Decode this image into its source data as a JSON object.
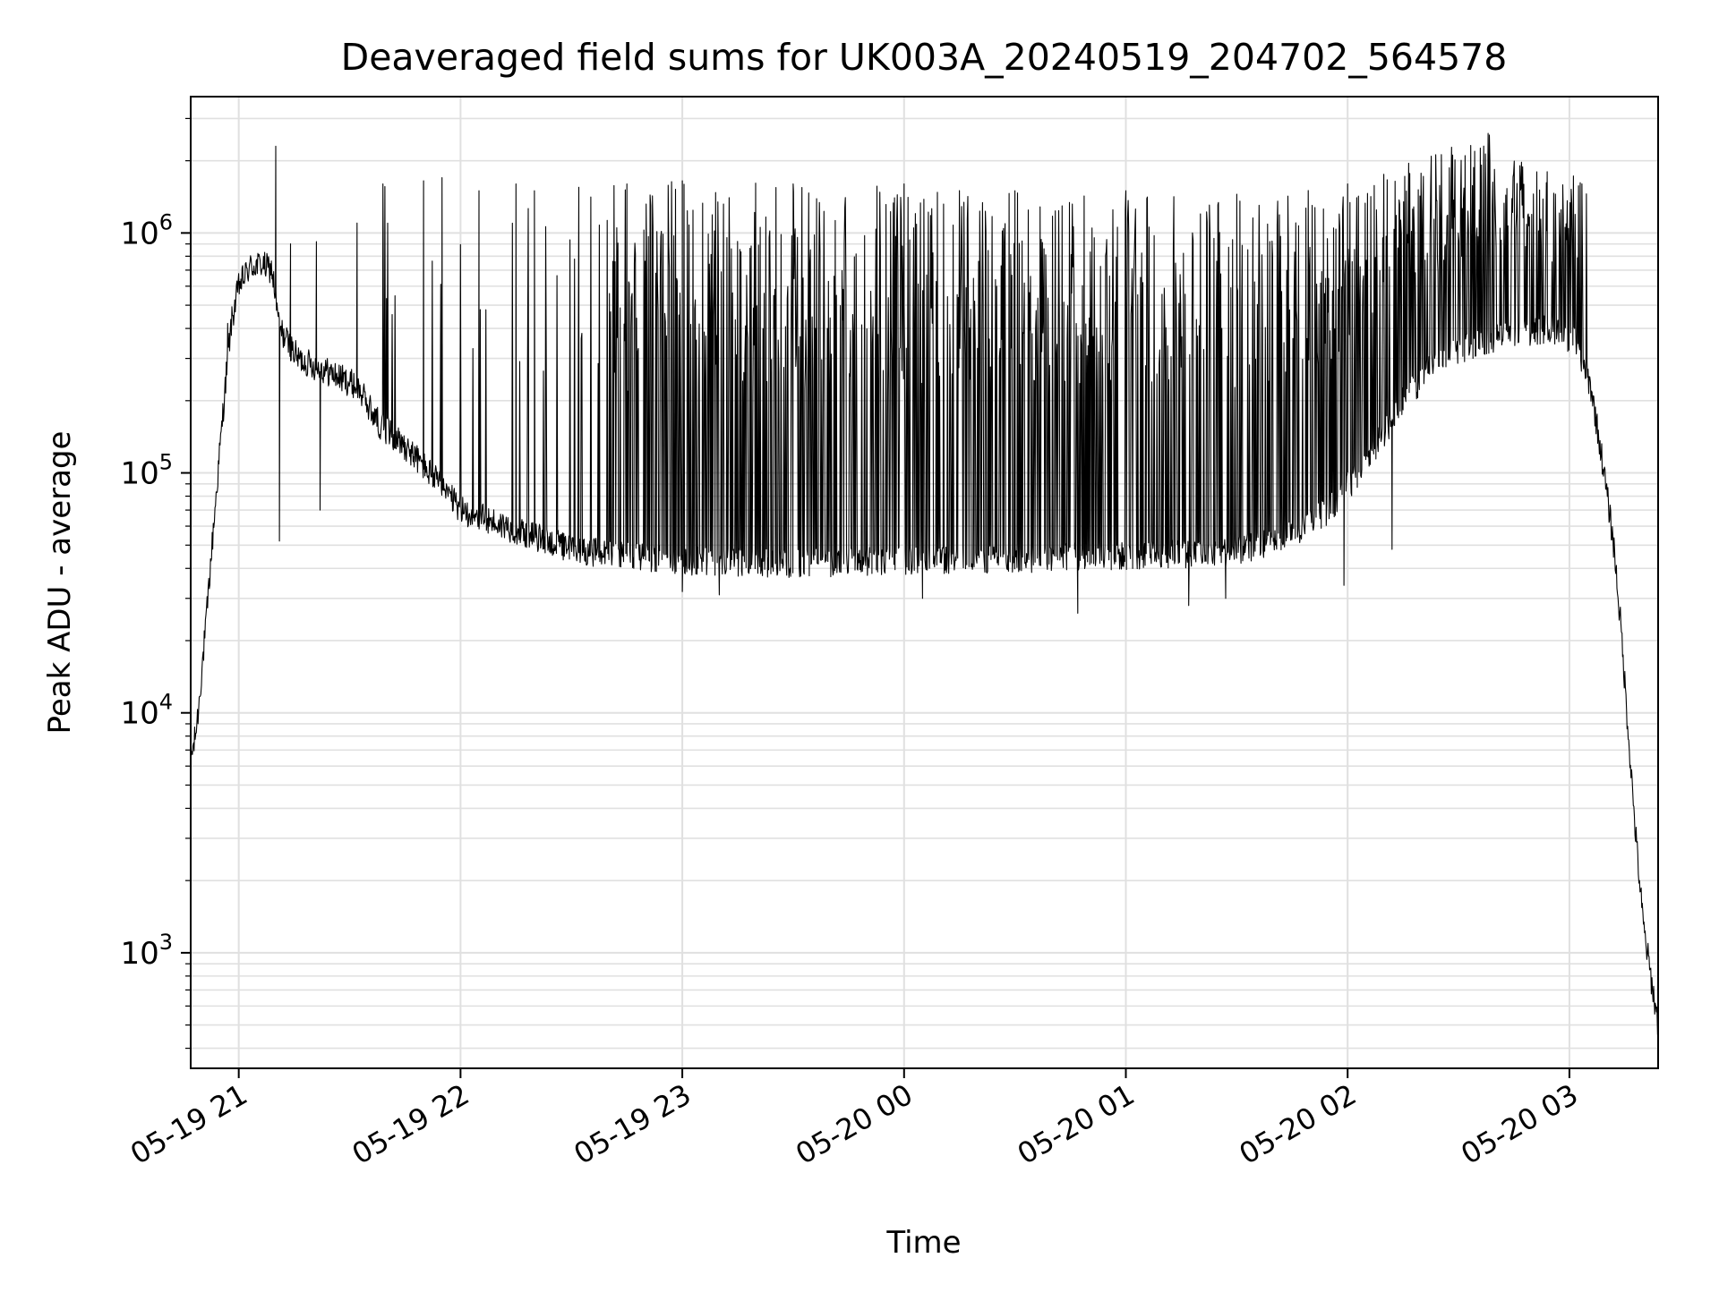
{
  "chart_data": {
    "type": "line",
    "title": "Deaveraged field sums for UK003A_20240519_204702_564578",
    "xlabel": "Time",
    "ylabel": "Peak ADU - average",
    "x_scale": "time",
    "y_scale": "log",
    "xlim": [
      "2024-05-19 20:47",
      "2024-05-20 03:24"
    ],
    "ylim": [
      330,
      3700000
    ],
    "x_ticks": [
      {
        "value": "2024-05-19 21:00",
        "label": "05-19 21"
      },
      {
        "value": "2024-05-19 22:00",
        "label": "05-19 22"
      },
      {
        "value": "2024-05-19 23:00",
        "label": "05-19 23"
      },
      {
        "value": "2024-05-20 00:00",
        "label": "05-20 00"
      },
      {
        "value": "2024-05-20 01:00",
        "label": "05-20 01"
      },
      {
        "value": "2024-05-20 02:00",
        "label": "05-20 02"
      },
      {
        "value": "2024-05-20 03:00",
        "label": "05-20 03"
      }
    ],
    "y_ticks": [
      {
        "value": 1000,
        "base": "10",
        "exp": "3"
      },
      {
        "value": 10000,
        "base": "10",
        "exp": "4"
      },
      {
        "value": 100000,
        "base": "10",
        "exp": "5"
      },
      {
        "value": 1000000,
        "base": "10",
        "exp": "6"
      }
    ],
    "grid": true,
    "line_color": "#000000",
    "grid_color": "#e0e0e0",
    "series": [
      {
        "baseline": [
          [
            "2024-05-19 20:47",
            6500
          ],
          [
            "2024-05-19 20:48",
            7500
          ],
          [
            "2024-05-19 20:49",
            10000
          ],
          [
            "2024-05-19 20:50",
            15000
          ],
          [
            "2024-05-19 20:51",
            22000
          ],
          [
            "2024-05-19 20:52",
            35000
          ],
          [
            "2024-05-19 20:53",
            55000
          ],
          [
            "2024-05-19 20:54",
            85000
          ],
          [
            "2024-05-19 20:55",
            130000
          ],
          [
            "2024-05-19 20:56",
            200000
          ],
          [
            "2024-05-19 20:57",
            300000
          ],
          [
            "2024-05-19 20:58",
            420000
          ],
          [
            "2024-05-19 21:00",
            600000
          ],
          [
            "2024-05-19 21:03",
            720000
          ],
          [
            "2024-05-19 21:06",
            740000
          ],
          [
            "2024-05-19 21:09",
            700000
          ],
          [
            "2024-05-19 21:11",
            400000
          ],
          [
            "2024-05-19 21:16",
            300000
          ],
          [
            "2024-05-19 21:25",
            260000
          ],
          [
            "2024-05-19 21:32",
            230000
          ],
          [
            "2024-05-19 21:38",
            160000
          ],
          [
            "2024-05-19 21:45",
            130000
          ],
          [
            "2024-05-19 21:53",
            95000
          ],
          [
            "2024-05-19 22:00",
            70000
          ],
          [
            "2024-05-19 22:12",
            60000
          ],
          [
            "2024-05-19 22:30",
            48000
          ],
          [
            "2024-05-19 22:45",
            45000
          ],
          [
            "2024-05-19 23:00",
            43000
          ],
          [
            "2024-05-19 23:30",
            42000
          ],
          [
            "2024-05-20 00:00",
            43000
          ],
          [
            "2024-05-20 00:30",
            44000
          ],
          [
            "2024-05-20 01:00",
            45000
          ],
          [
            "2024-05-20 01:30",
            47000
          ],
          [
            "2024-05-20 01:45",
            55000
          ],
          [
            "2024-05-20 01:55",
            70000
          ],
          [
            "2024-05-20 02:05",
            110000
          ],
          [
            "2024-05-20 02:15",
            200000
          ],
          [
            "2024-05-20 02:25",
            300000
          ],
          [
            "2024-05-20 02:35",
            350000
          ],
          [
            "2024-05-20 02:45",
            380000
          ],
          [
            "2024-05-20 02:55",
            400000
          ],
          [
            "2024-05-20 03:02",
            350000
          ],
          [
            "2024-05-20 03:06",
            220000
          ],
          [
            "2024-05-20 03:09",
            110000
          ],
          [
            "2024-05-20 03:12",
            50000
          ],
          [
            "2024-05-20 03:14",
            22000
          ],
          [
            "2024-05-20 03:16",
            8000
          ],
          [
            "2024-05-20 03:18",
            3000
          ],
          [
            "2024-05-20 03:20",
            1300
          ],
          [
            "2024-05-20 03:22",
            800
          ],
          [
            "2024-05-20 03:24",
            500
          ]
        ],
        "peaks": [
          [
            "2024-05-19 20:57",
            420000
          ],
          [
            "2024-05-19 21:10",
            2300000
          ],
          [
            "2024-05-19 21:14",
            900000
          ],
          [
            "2024-05-19 21:21",
            920000
          ],
          [
            "2024-05-19 21:32",
            1100000
          ],
          [
            "2024-05-19 21:39",
            1600000
          ],
          [
            "2024-05-19 21:50",
            1650000
          ],
          [
            "2024-05-19 21:55",
            1700000
          ],
          [
            "2024-05-19 22:05",
            1500000
          ],
          [
            "2024-05-19 22:15",
            1600000
          ],
          [
            "2024-05-19 22:20",
            1500000
          ],
          [
            "2024-05-19 22:32",
            1550000
          ],
          [
            "2024-05-19 22:45",
            1600000
          ],
          [
            "2024-05-19 23:00",
            1650000
          ],
          [
            "2024-05-19 23:30",
            1600000
          ],
          [
            "2024-05-20 00:00",
            1600000
          ],
          [
            "2024-05-20 00:30",
            1500000
          ],
          [
            "2024-05-20 01:00",
            1500000
          ],
          [
            "2024-05-20 01:30",
            1450000
          ],
          [
            "2024-05-20 02:00",
            1600000
          ],
          [
            "2024-05-20 02:38",
            2600000
          ],
          [
            "2024-05-20 02:54",
            1800000
          ]
        ],
        "dips": [
          [
            "2024-05-19 21:11",
            52000
          ],
          [
            "2024-05-19 21:22",
            70000
          ],
          [
            "2024-05-19 23:00",
            32000
          ],
          [
            "2024-05-19 23:10",
            31000
          ],
          [
            "2024-05-20 00:05",
            30000
          ],
          [
            "2024-05-20 00:47",
            26000
          ],
          [
            "2024-05-20 01:17",
            28000
          ],
          [
            "2024-05-20 01:27",
            30000
          ],
          [
            "2024-05-20 01:59",
            34000
          ],
          [
            "2024-05-20 02:12",
            48000
          ]
        ]
      }
    ]
  }
}
